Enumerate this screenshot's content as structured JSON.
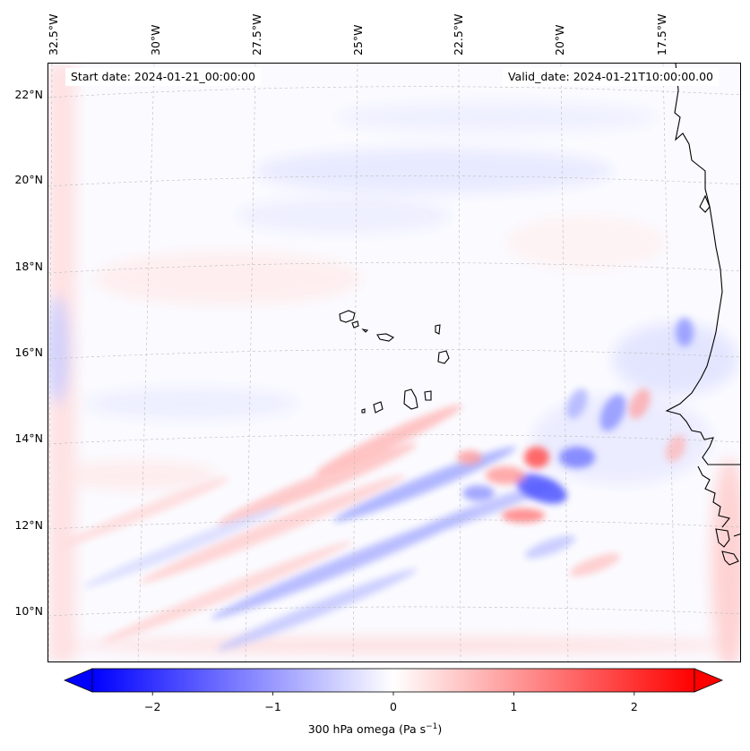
{
  "info": {
    "start_date": "Start date: 2024-01-21_00:00:00",
    "valid_date": "Valid_date: 2024-01-21T10:00:00.00"
  },
  "lon_labels": [
    "32.5°W",
    "30°W",
    "27.5°W",
    "25°W",
    "22.5°W",
    "20°W",
    "17.5°W"
  ],
  "lat_labels": [
    "22°N",
    "20°N",
    "18°N",
    "16°N",
    "14°N",
    "12°N",
    "10°N"
  ],
  "colorbar": {
    "label_prefix": "300 hPa omega (Pa s",
    "label_exp": "−1",
    "label_suffix": ")",
    "ticks": [
      "−2",
      "−1",
      "0",
      "1",
      "2"
    ],
    "tick_values": [
      -2,
      -1,
      0,
      1,
      2
    ],
    "vmin": -2.5,
    "vmax": 2.5,
    "cmap": "bwr",
    "extend": "both"
  },
  "colors": {
    "negative": "#0000ff",
    "positive": "#ff0000",
    "coastline": "#000000"
  }
}
